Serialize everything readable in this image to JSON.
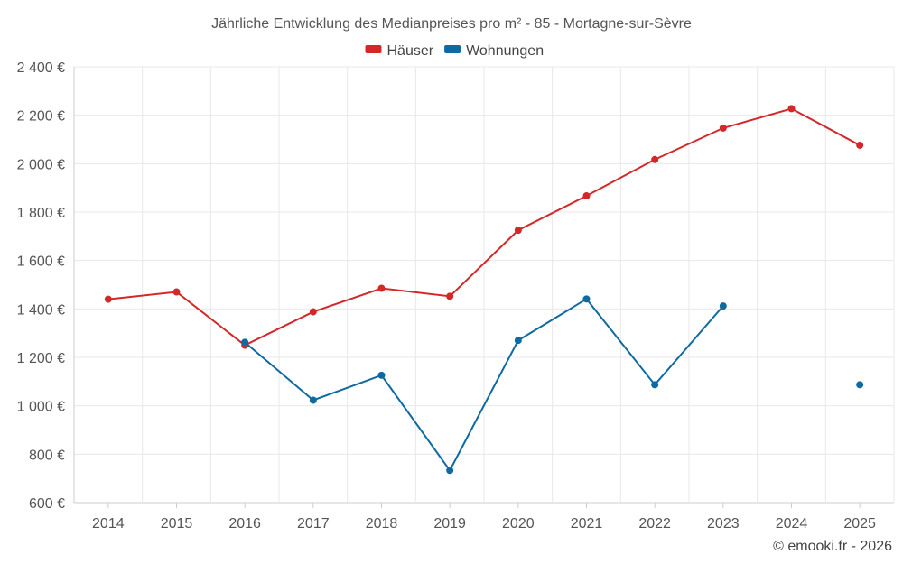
{
  "chart_data": {
    "type": "line",
    "title": "Jährliche Entwicklung des Medianpreises pro m² - 85 - Mortagne-sur-Sèvre",
    "categories": [
      "2014",
      "2015",
      "2016",
      "2017",
      "2018",
      "2019",
      "2020",
      "2021",
      "2022",
      "2023",
      "2024",
      "2025"
    ],
    "ylim": [
      600,
      2400
    ],
    "yticks": [
      600,
      800,
      1000,
      1200,
      1400,
      1600,
      1800,
      2000,
      2200,
      2400
    ],
    "ytick_labels": [
      "600 €",
      "800 €",
      "1 000 €",
      "1 200 €",
      "1 400 €",
      "1 600 €",
      "1 800 €",
      "2 000 €",
      "2 200 €",
      "2 400 €"
    ],
    "legend_position": "top-center",
    "grid": true,
    "series": [
      {
        "name": "Häuser",
        "color": "#d62728",
        "values": [
          1440,
          1470,
          1250,
          1388,
          1485,
          1452,
          1725,
          1867,
          2017,
          2147,
          2227,
          2076
        ]
      },
      {
        "name": "Wohnungen",
        "color": "#0f6aa1",
        "values": [
          null,
          null,
          1262,
          1023,
          1126,
          733,
          1270,
          1441,
          1087,
          1412,
          null,
          1087
        ]
      }
    ],
    "credit": "© emooki.fr - 2026"
  }
}
